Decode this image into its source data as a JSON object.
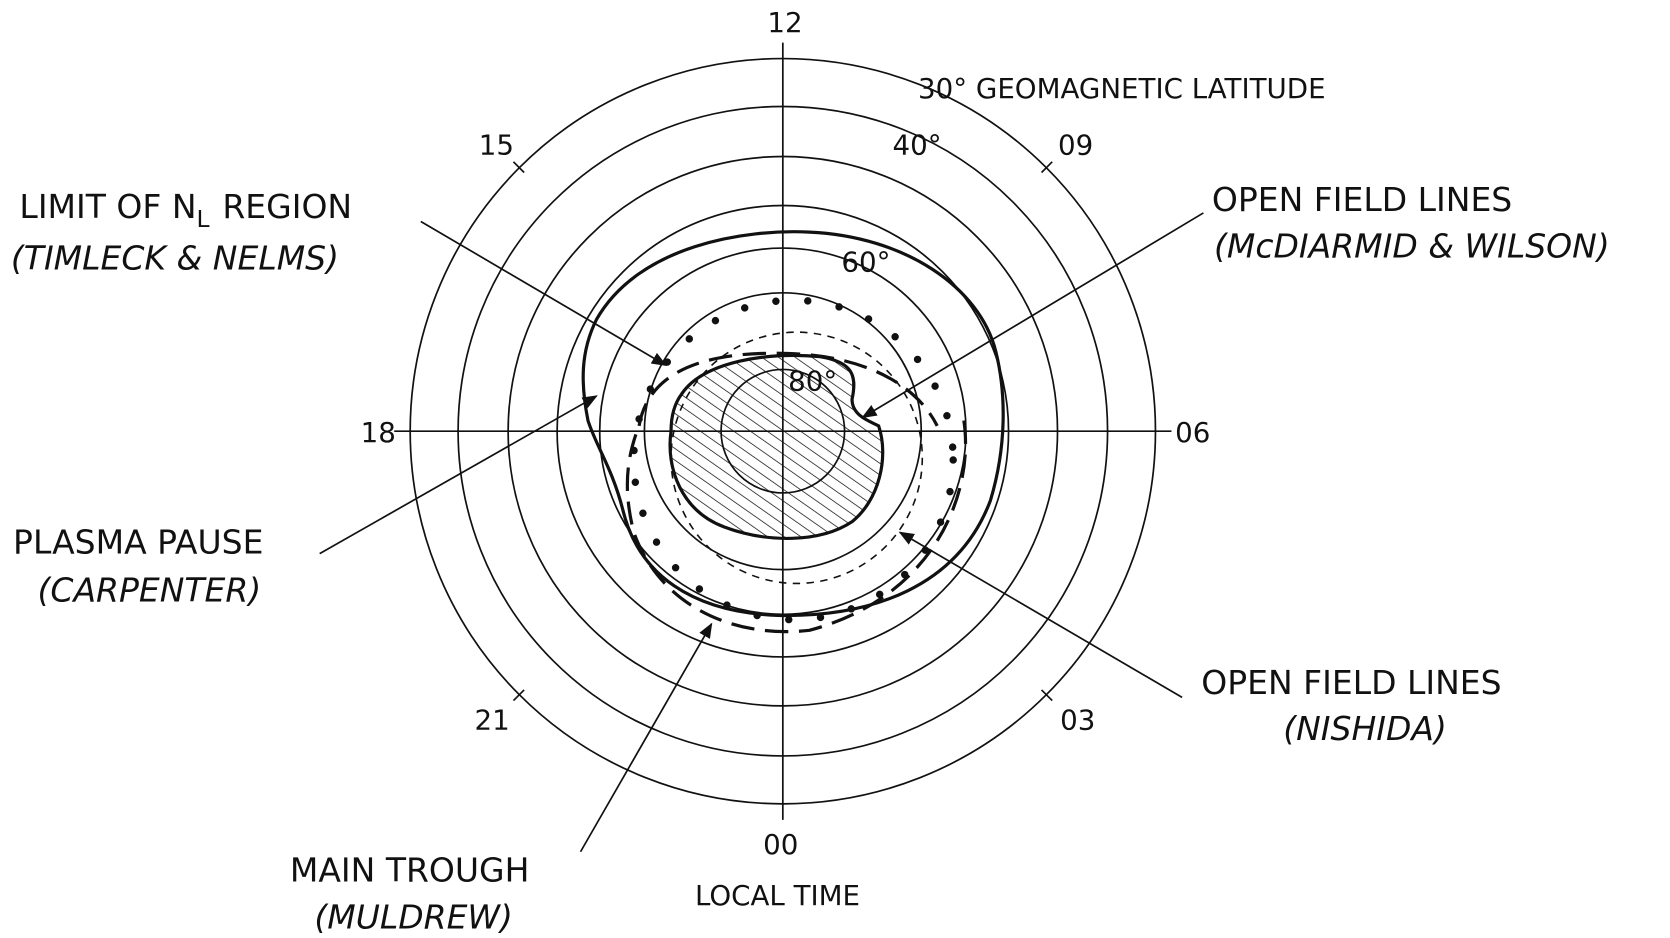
{
  "hours": [
    "12",
    "15",
    "09",
    "18",
    "06",
    "21",
    "03",
    "00"
  ],
  "latitudes": {
    "outer": "30° GEOMAGNETIC LATITUDE",
    "l40": "40°",
    "l60": "60°",
    "l80": "80°"
  },
  "axis_label": "LOCAL TIME",
  "annotations": {
    "limit": {
      "parts": [
        "LIMIT OF N",
        "L",
        "REGION"
      ],
      "source": "(TIMLECK & NELMS)"
    },
    "plasma": {
      "title": "PLASMA PAUSE",
      "source": "(CARPENTER)"
    },
    "trough": {
      "title": "MAIN TROUGH",
      "source": "(MULDREW)"
    },
    "open_mcd": {
      "title": "OPEN FIELD LINES",
      "source": "(McDIARMID & WILSON)"
    },
    "open_nis": {
      "title": "OPEN FIELD LINES",
      "source": "(NISHIDA)"
    }
  }
}
